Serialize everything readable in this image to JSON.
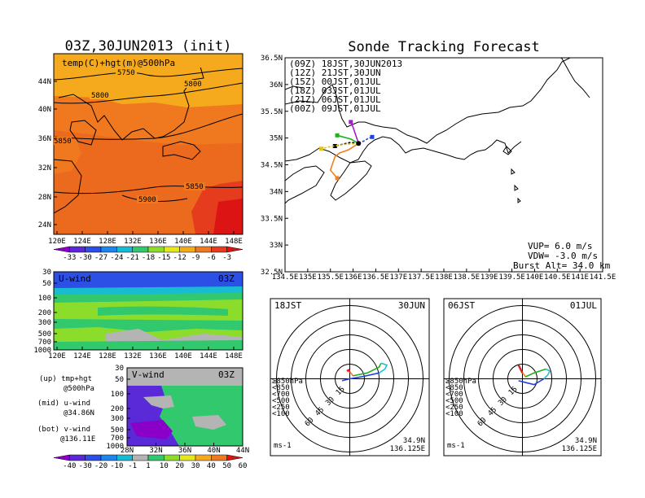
{
  "left": {
    "title": "03Z,30JUN2013 (init)",
    "map_label": "temp(C)+hgt(m)@500hPa",
    "lat_ticks": [
      "44N",
      "40N",
      "36N",
      "32N",
      "28N",
      "24N"
    ],
    "lon_ticks": [
      "120E",
      "124E",
      "128E",
      "132E",
      "136E",
      "140E",
      "144E",
      "148E"
    ],
    "contours": [
      "5750",
      "5800",
      "5800",
      "5850",
      "5850",
      "5900"
    ],
    "temp_scale_labels": [
      "-33",
      "-30",
      "-27",
      "-24",
      "-21",
      "-18",
      "-15",
      "-12",
      "-9",
      "-6",
      "-3"
    ],
    "temp_scale_colors": [
      "#8a00c8",
      "#5a2ad8",
      "#2c4fe6",
      "#1c86f0",
      "#18bcd2",
      "#32c86e",
      "#8cdc2c",
      "#e6e61e",
      "#f5aa1e",
      "#f0781e",
      "#e63c1e",
      "#dc1414"
    ],
    "uwind_label": "U-wind",
    "uwind_time": "03Z",
    "vwind_label": "V-wind",
    "vwind_time": "03Z",
    "pressure_ticks": [
      "30",
      "50",
      "100",
      "200",
      "300",
      "500",
      "700",
      "1000"
    ],
    "vwind_lat_ticks": [
      "28N",
      "32N",
      "36N",
      "40N",
      "44N"
    ],
    "legend_up": "(up) tmp+hgt",
    "legend_up2": "@500hPa",
    "legend_mid": "(mid) u-wind",
    "legend_mid2": "@34.86N",
    "legend_bot": "(bot) v-wind",
    "legend_bot2": "@136.11E",
    "wind_scale_labels": [
      "-40",
      "-30",
      "-20",
      "-10",
      "-1",
      "1",
      "10",
      "20",
      "30",
      "40",
      "50",
      "60"
    ],
    "wind_scale_colors": [
      "#8a00c8",
      "#5a2ad8",
      "#2c4fe6",
      "#1c86f0",
      "#18bcd2",
      "#b4b4b4",
      "#32c86e",
      "#8cdc2c",
      "#e6e61e",
      "#f5aa1e",
      "#f0781e",
      "#dc1414"
    ]
  },
  "right": {
    "title": "Sonde Tracking Forecast",
    "lat_ticks": [
      "36.5N",
      "36N",
      "35.5N",
      "35N",
      "34.5N",
      "34N",
      "33.5N",
      "33N",
      "32.5N"
    ],
    "lon_ticks": [
      "134.5E",
      "135E",
      "135.5E",
      "136E",
      "136.5E",
      "137E",
      "137.5E",
      "138E",
      "138.5E",
      "139E",
      "139.5E",
      "140E",
      "140.5E",
      "141E",
      "141.5E"
    ],
    "launches": [
      {
        "label": "(09Z)  18JST,30JUN2013",
        "color": "#000000"
      },
      {
        "label": "(12Z)  21JST,30JUN",
        "color": "#a020c8"
      },
      {
        "label": "(15Z)  00JST,01JUL",
        "color": "#2040e0"
      },
      {
        "label": "(18Z)  03JST,01JUL",
        "color": "#20b020"
      },
      {
        "label": "(21Z)  06JST,01JUL",
        "color": "#e0c020"
      },
      {
        "label": "(00Z)  09JST,01JUL",
        "color": "#f08020"
      }
    ],
    "vup": "VUP=  6.0  m/s",
    "vdw": "VDW= -3.0  m/s",
    "burst": "Burst Alt= 34.0  km"
  },
  "hodographs": [
    {
      "time": "18JST",
      "date": "30JUN",
      "loc1": "34.9N",
      "loc2": "136.125E",
      "unit": "ms-1"
    },
    {
      "time": "06JST",
      "date": "01JUL",
      "loc1": "34.9N",
      "loc2": "136.125E",
      "unit": "ms-1"
    }
  ],
  "hodo_ring_labels": [
    "15",
    "30",
    "45",
    "60"
  ],
  "hodo_legend": [
    {
      "label": "≥850hPa",
      "color": "#e02020"
    },
    {
      "label": "<850",
      "color": "#f08020"
    },
    {
      "label": "<700",
      "color": "#e0d020"
    },
    {
      "label": "<500",
      "color": "#20b020"
    },
    {
      "label": "<250",
      "color": "#20c0d0"
    },
    {
      "label": "<100",
      "color": "#2040e0"
    }
  ],
  "chart_data": [
    {
      "type": "heatmap",
      "title": "03Z,30JUN2013 (init)",
      "subtitle": "temp(C)+hgt(m)@500hPa",
      "x_ticks": [
        "120E",
        "124E",
        "128E",
        "132E",
        "136E",
        "140E",
        "144E",
        "148E"
      ],
      "y_ticks": [
        "24N",
        "28N",
        "32N",
        "36N",
        "40N",
        "44N"
      ],
      "xlim": [
        120,
        150
      ],
      "ylim": [
        22,
        48
      ],
      "color_levels": [
        -33,
        -30,
        -27,
        -24,
        -21,
        -18,
        -15,
        -12,
        -9,
        -6,
        -3
      ],
      "contour_labels": [
        5750,
        5800,
        5850,
        5900
      ]
    },
    {
      "type": "line",
      "title": "Sonde Tracking Forecast",
      "xlim": [
        134.5,
        141.5
      ],
      "ylim": [
        32.5,
        36.5
      ],
      "series": [
        {
          "name": "(09Z)  18JST,30JUN2013",
          "x": [
            136.12,
            135.95,
            135.75,
            135.6
          ],
          "y": [
            34.9,
            34.92,
            34.88,
            34.85
          ]
        },
        {
          "name": "(12Z)  21JST,30JUN",
          "x": [
            136.12,
            136.06,
            136.0,
            135.95
          ],
          "y": [
            34.9,
            35.05,
            35.2,
            35.3
          ]
        },
        {
          "name": "(15Z)  00JST,01JUL",
          "x": [
            136.12,
            136.25,
            136.35,
            136.42
          ],
          "y": [
            34.9,
            34.95,
            35.0,
            35.02
          ]
        },
        {
          "name": "(18Z)  03JST,01JUL",
          "x": [
            136.12,
            135.95,
            135.78,
            135.65
          ],
          "y": [
            34.9,
            34.98,
            35.02,
            35.05
          ]
        },
        {
          "name": "(21Z)  06JST,01JUL",
          "x": [
            136.12,
            135.8,
            135.5,
            135.3
          ],
          "y": [
            34.9,
            34.88,
            34.84,
            34.8
          ]
        },
        {
          "name": "(00Z)  09JST,01JUL",
          "x": [
            136.12,
            135.9,
            135.7,
            135.6,
            135.5,
            135.65
          ],
          "y": [
            34.9,
            34.78,
            34.72,
            34.65,
            34.4,
            34.25
          ]
        }
      ]
    },
    {
      "type": "line",
      "title": "18JST 30JUN",
      "series": [
        {
          "name": "≥850hPa",
          "x": [
            -3,
            -1,
            0
          ],
          "y": [
            8,
            9,
            7
          ]
        },
        {
          "name": "<850",
          "x": [
            0,
            2,
            3
          ],
          "y": [
            7,
            5,
            3
          ]
        },
        {
          "name": "<500",
          "x": [
            3,
            18,
            30,
            32
          ],
          "y": [
            3,
            6,
            12,
            16
          ]
        },
        {
          "name": "<250",
          "x": [
            32,
            38,
            36,
            30
          ],
          "y": [
            16,
            14,
            10,
            6
          ]
        },
        {
          "name": "<100",
          "x": [
            30,
            12,
            0,
            -8
          ],
          "y": [
            6,
            2,
            0,
            -2
          ]
        }
      ]
    },
    {
      "type": "line",
      "title": "06JST 01JUL",
      "series": [
        {
          "name": "≥850hPa",
          "x": [
            -4,
            -2,
            0
          ],
          "y": [
            14,
            10,
            6
          ]
        },
        {
          "name": "<850",
          "x": [
            0,
            2,
            3
          ],
          "y": [
            6,
            4,
            2
          ]
        },
        {
          "name": "<500",
          "x": [
            3,
            12,
            18,
            24
          ],
          "y": [
            2,
            6,
            8,
            10
          ]
        },
        {
          "name": "<250",
          "x": [
            24,
            28,
            26,
            22
          ],
          "y": [
            10,
            8,
            4,
            0
          ]
        },
        {
          "name": "<100",
          "x": [
            22,
            12,
            4,
            -4
          ],
          "y": [
            0,
            -6,
            -4,
            -2
          ]
        }
      ]
    }
  ]
}
